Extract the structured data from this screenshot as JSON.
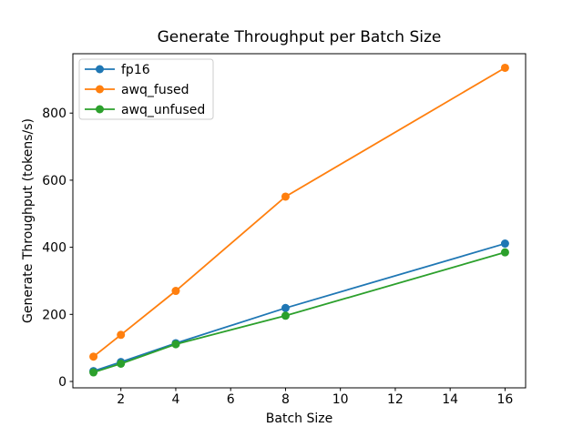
{
  "chart_data": {
    "type": "line",
    "title": "Generate Throughput per Batch Size",
    "xlabel": "Batch Size",
    "ylabel": "Generate Throughput (tokens/s)",
    "x": [
      1,
      2,
      4,
      8,
      16
    ],
    "series": [
      {
        "name": "fp16",
        "color": "#1f77b4",
        "values": [
          31,
          58,
          114,
          219,
          411
        ]
      },
      {
        "name": "awq_fused",
        "color": "#ff7f0e",
        "values": [
          74,
          139,
          270,
          551,
          935
        ]
      },
      {
        "name": "awq_unfused",
        "color": "#2ca02c",
        "values": [
          27,
          53,
          111,
          196,
          385
        ]
      }
    ],
    "xticks": [
      2,
      4,
      6,
      8,
      10,
      12,
      14,
      16
    ],
    "yticks": [
      0,
      200,
      400,
      600,
      800
    ],
    "xlim": [
      0.25,
      16.75
    ],
    "ylim": [
      -19,
      977
    ],
    "grid": false,
    "marker": "o",
    "legend_position": "upper left",
    "axis_color": "#000000",
    "legend_border_color": "#cccccc",
    "background": "#ffffff"
  }
}
